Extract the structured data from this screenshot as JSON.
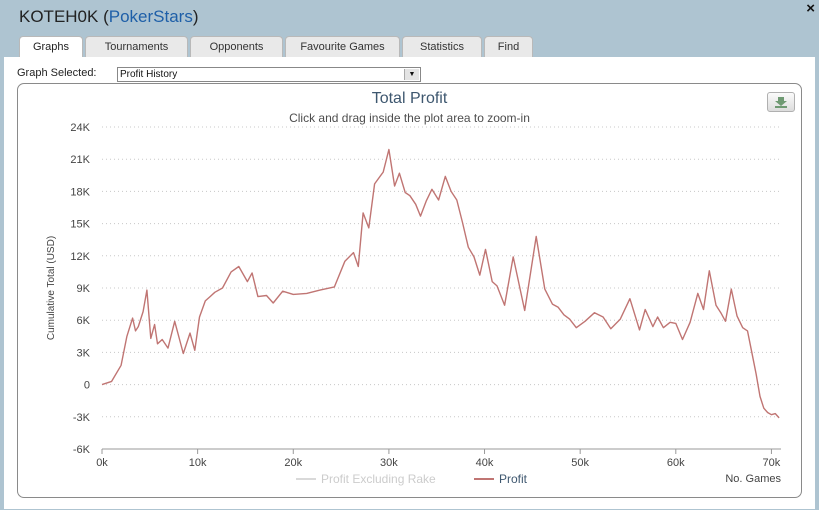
{
  "window": {
    "player": "KOTEH0K",
    "open_paren": " (",
    "site": "PokerStars",
    "close_paren": ")",
    "close_glyph": "×"
  },
  "tabs": [
    {
      "label": "Graphs",
      "active": true
    },
    {
      "label": "Tournaments"
    },
    {
      "label": "Opponents"
    },
    {
      "label": "Favourite Games"
    },
    {
      "label": "Statistics"
    },
    {
      "label": "Find"
    }
  ],
  "graph_selector": {
    "label": "Graph Selected:",
    "value": "Profit History",
    "arrow": "▼"
  },
  "export_icon": "download-icon",
  "colors": {
    "profit_line": "#c07573",
    "excl_rake_line": "#d9d9d9",
    "title": "#3e576f",
    "grid": "#c8c8c8"
  },
  "chart_data": {
    "type": "line",
    "title": "Total Profit",
    "subtitle": "Click and drag inside the plot area to zoom-in",
    "ylabel": "Cumulative Total (USD)",
    "xlabel": "No. Games",
    "ylim": [
      -6000,
      24000
    ],
    "xlim": [
      0,
      71000
    ],
    "yticks": [
      -6000,
      -3000,
      0,
      3000,
      6000,
      9000,
      12000,
      15000,
      18000,
      21000,
      24000
    ],
    "ytick_labels": [
      "-6K",
      "-3K",
      "0",
      "3K",
      "6K",
      "9K",
      "12K",
      "15K",
      "18K",
      "21K",
      "24K"
    ],
    "xticks": [
      0,
      10000,
      20000,
      30000,
      40000,
      50000,
      60000,
      70000
    ],
    "xtick_labels": [
      "0k",
      "10k",
      "20k",
      "30k",
      "40k",
      "50k",
      "60k",
      "70k"
    ],
    "grid": "horizontal-dotted",
    "legend_position": "bottom-center",
    "series": [
      {
        "name": "Profit Excluding Rake",
        "values": []
      },
      {
        "name": "Profit",
        "x": [
          0,
          1000,
          2000,
          2600,
          3200,
          3500,
          3800,
          4300,
          4700,
          5100,
          5500,
          5800,
          6300,
          6900,
          7600,
          8500,
          9200,
          9700,
          10200,
          10800,
          11300,
          11800,
          12600,
          13500,
          14300,
          15200,
          15700,
          16300,
          17200,
          17900,
          18900,
          20000,
          21400,
          22800,
          24300,
          25400,
          26300,
          26800,
          27300,
          27900,
          28500,
          29400,
          30000,
          30600,
          31100,
          31700,
          32200,
          32800,
          33300,
          33900,
          34500,
          35200,
          35900,
          36500,
          37100,
          37700,
          38300,
          38900,
          39500,
          40100,
          40800,
          41300,
          42100,
          43000,
          44200,
          45400,
          46300,
          47100,
          47700,
          48300,
          48900,
          49600,
          50500,
          51500,
          52400,
          53200,
          54200,
          55200,
          56200,
          56800,
          57600,
          58100,
          58700,
          59400,
          60000,
          60700,
          61500,
          62300,
          62900,
          63500,
          64200,
          64700,
          65200,
          65800,
          66400,
          67000,
          67500,
          67900,
          68400,
          68800,
          69200,
          69600,
          70000,
          70400,
          70800
        ],
        "values": [
          0,
          300,
          1800,
          4500,
          6200,
          5000,
          5400,
          6800,
          8800,
          4300,
          5600,
          3800,
          4200,
          3400,
          5900,
          2900,
          4800,
          3200,
          6300,
          7800,
          8200,
          8600,
          9000,
          10500,
          11000,
          9600,
          10400,
          8200,
          8300,
          7600,
          8700,
          8400,
          8500,
          8800,
          9100,
          11500,
          12300,
          11000,
          16000,
          14600,
          18700,
          19800,
          21900,
          18500,
          19700,
          17900,
          17600,
          16800,
          15700,
          17100,
          18200,
          17200,
          19400,
          18000,
          17200,
          15100,
          12800,
          11900,
          10200,
          12600,
          9600,
          9200,
          7400,
          11900,
          6900,
          13800,
          8900,
          7500,
          7200,
          6500,
          6100,
          5300,
          5900,
          6700,
          6300,
          5200,
          6100,
          8000,
          5100,
          7000,
          5400,
          6300,
          5300,
          5800,
          5700,
          4200,
          5800,
          8500,
          7000,
          10600,
          7400,
          6700,
          5900,
          8900,
          6400,
          5300,
          5000,
          3200,
          1000,
          -1100,
          -2200,
          -2600,
          -2800,
          -2700,
          -3100
        ]
      }
    ]
  }
}
